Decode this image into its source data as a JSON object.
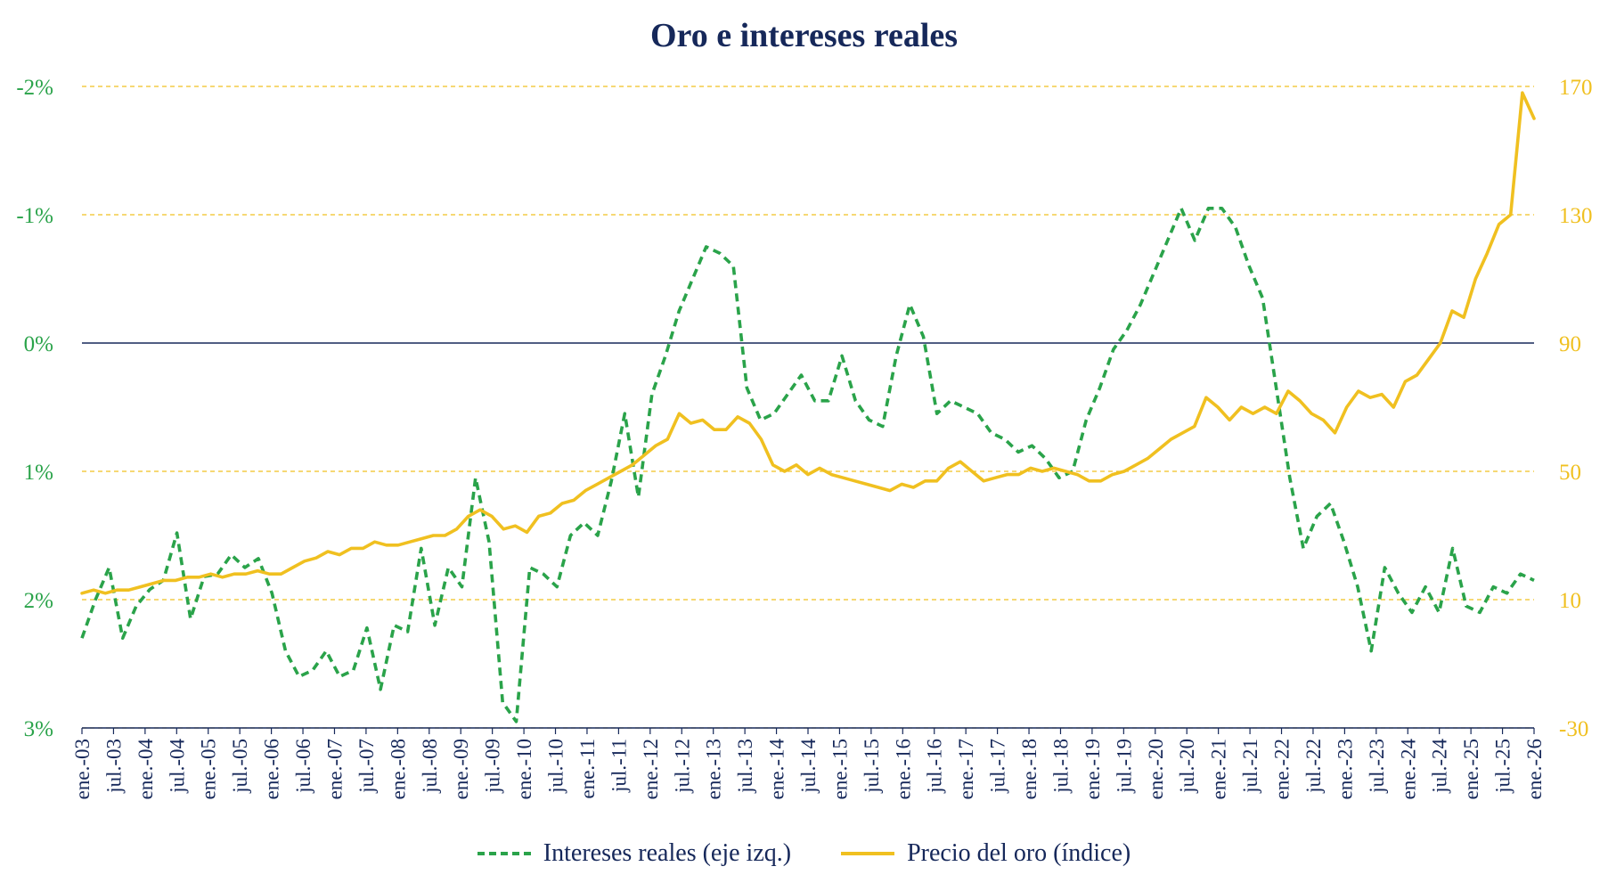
{
  "chart_data": {
    "type": "line",
    "title": "Oro e intereses reales",
    "x_tick_labels": [
      "ene.-03",
      "jul.-03",
      "ene.-04",
      "jul.-04",
      "ene.-05",
      "jul.-05",
      "ene.-06",
      "jul.-06",
      "ene.-07",
      "jul.-07",
      "ene.-08",
      "jul.-08",
      "ene.-09",
      "jul.-09",
      "ene.-10",
      "jul.-10",
      "ene.-11",
      "jul.-11",
      "ene.-12",
      "jul.-12",
      "ene.-13",
      "jul.-13",
      "ene.-14",
      "jul.-14",
      "ene.-15",
      "jul.-15",
      "ene.-16",
      "jul.-16",
      "ene.-17",
      "jul.-17",
      "ene.-18",
      "jul.-18",
      "ene.-19",
      "jul.-19",
      "ene.-20",
      "jul.-20",
      "ene.-21",
      "jul.-21",
      "ene.-22",
      "jul.-22",
      "ene.-23",
      "jul.-23",
      "ene.-24",
      "jul.-24",
      "ene.-25",
      "jul.-25",
      "ene.-26"
    ],
    "left_axis": {
      "range": [
        3,
        -2
      ],
      "inverted": true,
      "ticks": [
        -2,
        -1,
        0,
        1,
        2,
        3
      ],
      "tick_labels": [
        "-2%",
        "-1%",
        "0%",
        "1%",
        "2%",
        "3%"
      ]
    },
    "right_axis": {
      "range": [
        -30,
        170
      ],
      "ticks": [
        170,
        130,
        90,
        50,
        10,
        -30
      ],
      "tick_labels": [
        "170",
        "130",
        "90",
        "50",
        "10",
        "-30"
      ]
    },
    "zero_line": 0,
    "series": [
      {
        "name": "Intereses reales (eje izq.)",
        "axis": "left",
        "style": "dashed",
        "color": "#2aa34a",
        "values": [
          2.3,
          2.0,
          1.75,
          2.3,
          2.05,
          1.92,
          1.85,
          1.48,
          2.15,
          1.82,
          1.8,
          1.65,
          1.75,
          1.68,
          1.95,
          2.4,
          2.6,
          2.55,
          2.4,
          2.6,
          2.55,
          2.22,
          2.7,
          2.2,
          2.25,
          1.6,
          2.2,
          1.75,
          1.9,
          1.05,
          1.55,
          2.8,
          2.95,
          1.75,
          1.8,
          1.9,
          1.5,
          1.4,
          1.5,
          1.08,
          0.55,
          1.2,
          0.4,
          0.1,
          -0.25,
          -0.5,
          -0.75,
          -0.7,
          -0.6,
          0.35,
          0.6,
          0.55,
          0.4,
          0.25,
          0.45,
          0.45,
          0.1,
          0.45,
          0.6,
          0.65,
          0.1,
          -0.3,
          -0.05,
          0.55,
          0.45,
          0.5,
          0.55,
          0.7,
          0.75,
          0.85,
          0.8,
          0.9,
          1.05,
          1.0,
          0.6,
          0.35,
          0.05,
          -0.1,
          -0.3,
          -0.55,
          -0.8,
          -1.05,
          -0.8,
          -1.05,
          -1.05,
          -0.9,
          -0.6,
          -0.35,
          0.35,
          1.05,
          1.6,
          1.35,
          1.25,
          1.55,
          1.9,
          2.4,
          1.75,
          1.95,
          2.1,
          1.9,
          2.1,
          1.6,
          2.05,
          2.1,
          1.9,
          1.95,
          1.8,
          1.85
        ]
      },
      {
        "name": "Precio del oro (índice)",
        "axis": "right",
        "style": "solid",
        "color": "#f0c020",
        "values": [
          12,
          13,
          12,
          13,
          13,
          14,
          15,
          16,
          16,
          17,
          17,
          18,
          17,
          18,
          18,
          19,
          18,
          18,
          20,
          22,
          23,
          25,
          24,
          26,
          26,
          28,
          27,
          27,
          28,
          29,
          30,
          30,
          32,
          36,
          38,
          36,
          32,
          33,
          31,
          36,
          37,
          40,
          41,
          44,
          46,
          48,
          50,
          52,
          55,
          58,
          60,
          68,
          65,
          66,
          63,
          63,
          67,
          65,
          60,
          52,
          50,
          52,
          49,
          51,
          49,
          48,
          47,
          46,
          45,
          44,
          46,
          45,
          47,
          47,
          51,
          53,
          50,
          47,
          48,
          49,
          49,
          51,
          50,
          51,
          50,
          49,
          47,
          47,
          49,
          50,
          52,
          54,
          57,
          60,
          62,
          64,
          73,
          70,
          66,
          70,
          68,
          70,
          68,
          75,
          72,
          68,
          66,
          62,
          70,
          75,
          73,
          74,
          70,
          78,
          80,
          85,
          90,
          100,
          98,
          110,
          118,
          127,
          130,
          168,
          160
        ]
      }
    ]
  },
  "legend": {
    "items": [
      {
        "label": "Intereses reales (eje izq.)"
      },
      {
        "label": "Precio del oro (índice)"
      }
    ]
  }
}
